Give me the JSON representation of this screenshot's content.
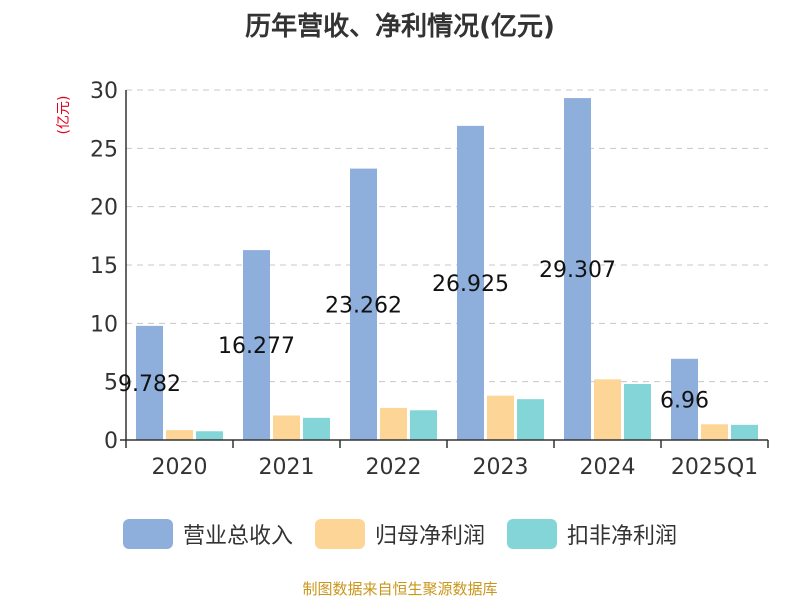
{
  "chart_data": {
    "type": "bar",
    "title": "历年营收、净利情况(亿元)",
    "ylabel": "(亿元)",
    "categories": [
      "2020",
      "2021",
      "2022",
      "2023",
      "2024",
      "2025Q1"
    ],
    "ylim": [
      0,
      30
    ],
    "yticks": [
      0,
      5,
      10,
      15,
      20,
      25,
      30
    ],
    "grid": true,
    "legend_position": "bottom",
    "series": [
      {
        "name": "营业总收入",
        "color": "#8eaedb",
        "values": [
          9.782,
          16.277,
          23.262,
          26.925,
          29.307,
          6.96
        ],
        "labels": [
          "9.782",
          "16.277",
          "23.262",
          "26.925",
          "29.307",
          "6.96"
        ]
      },
      {
        "name": "归母净利润",
        "color": "#fdd697",
        "values": [
          0.85,
          2.1,
          2.75,
          3.8,
          5.2,
          1.35
        ]
      },
      {
        "name": "扣非净利润",
        "color": "#84d5d7",
        "values": [
          0.75,
          1.9,
          2.55,
          3.5,
          4.8,
          1.3
        ]
      }
    ]
  },
  "source": "制图数据来自恒生聚源数据库"
}
